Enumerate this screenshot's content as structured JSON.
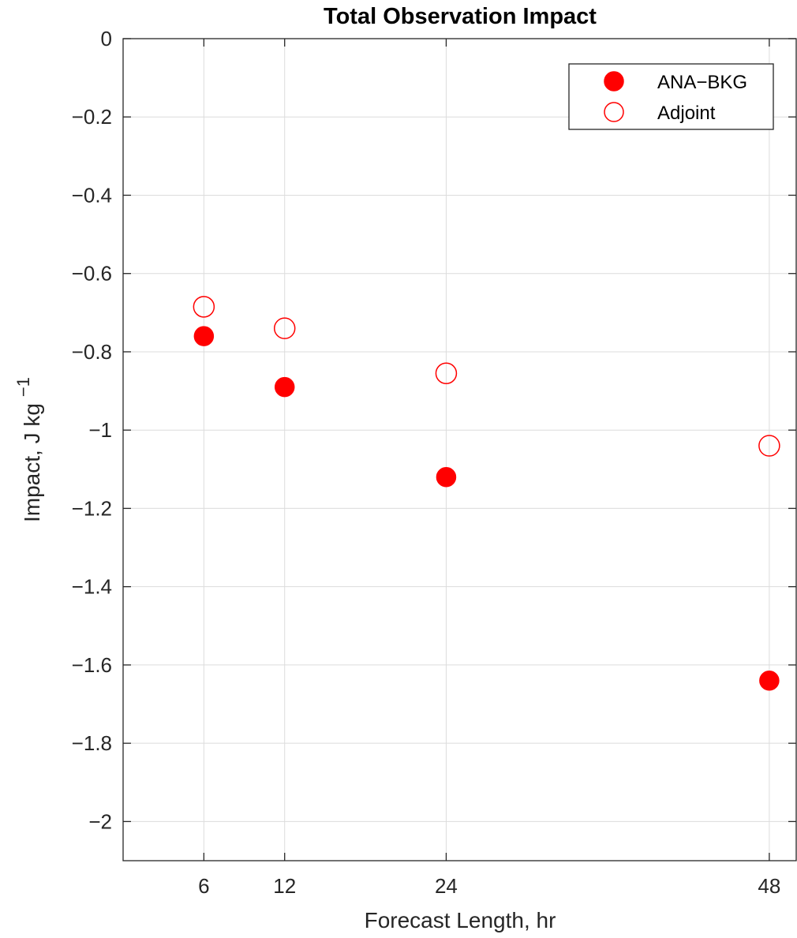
{
  "colors": {
    "marker": "#ff0000",
    "grid": "#dcdcdc",
    "axis": "#262626"
  },
  "chart_data": {
    "type": "scatter",
    "title": "Total Observation Impact",
    "xlabel": "Forecast Length, hr",
    "ylabel": "Impact, J kg",
    "ylabel_superscript": "−1",
    "xlim": [
      0,
      50
    ],
    "ylim": [
      -2.1,
      0
    ],
    "x_ticks": [
      6,
      12,
      24,
      48
    ],
    "x_tick_labels": [
      "6",
      "12",
      "24",
      "48"
    ],
    "y_ticks": [
      0,
      -0.2,
      -0.4,
      -0.6,
      -0.8,
      -1,
      -1.2,
      -1.4,
      -1.6,
      -1.8,
      -2
    ],
    "y_tick_labels": [
      "0",
      "−0.2",
      "−0.4",
      "−0.6",
      "−0.8",
      "−1",
      "−1.2",
      "−1.4",
      "−1.6",
      "−1.8",
      "−2"
    ],
    "grid": true,
    "legend_position": "top-right",
    "series": [
      {
        "name": "ANA−BKG",
        "marker": "filled-circle",
        "color": "#ff0000",
        "points": [
          {
            "x": 6,
            "y": -0.76
          },
          {
            "x": 12,
            "y": -0.89
          },
          {
            "x": 24,
            "y": -1.12
          },
          {
            "x": 48,
            "y": -1.64
          }
        ]
      },
      {
        "name": "Adjoint",
        "marker": "open-circle",
        "color": "#ff0000",
        "points": [
          {
            "x": 6,
            "y": -0.685
          },
          {
            "x": 12,
            "y": -0.74
          },
          {
            "x": 24,
            "y": -0.855
          },
          {
            "x": 48,
            "y": -1.04
          }
        ]
      }
    ]
  }
}
